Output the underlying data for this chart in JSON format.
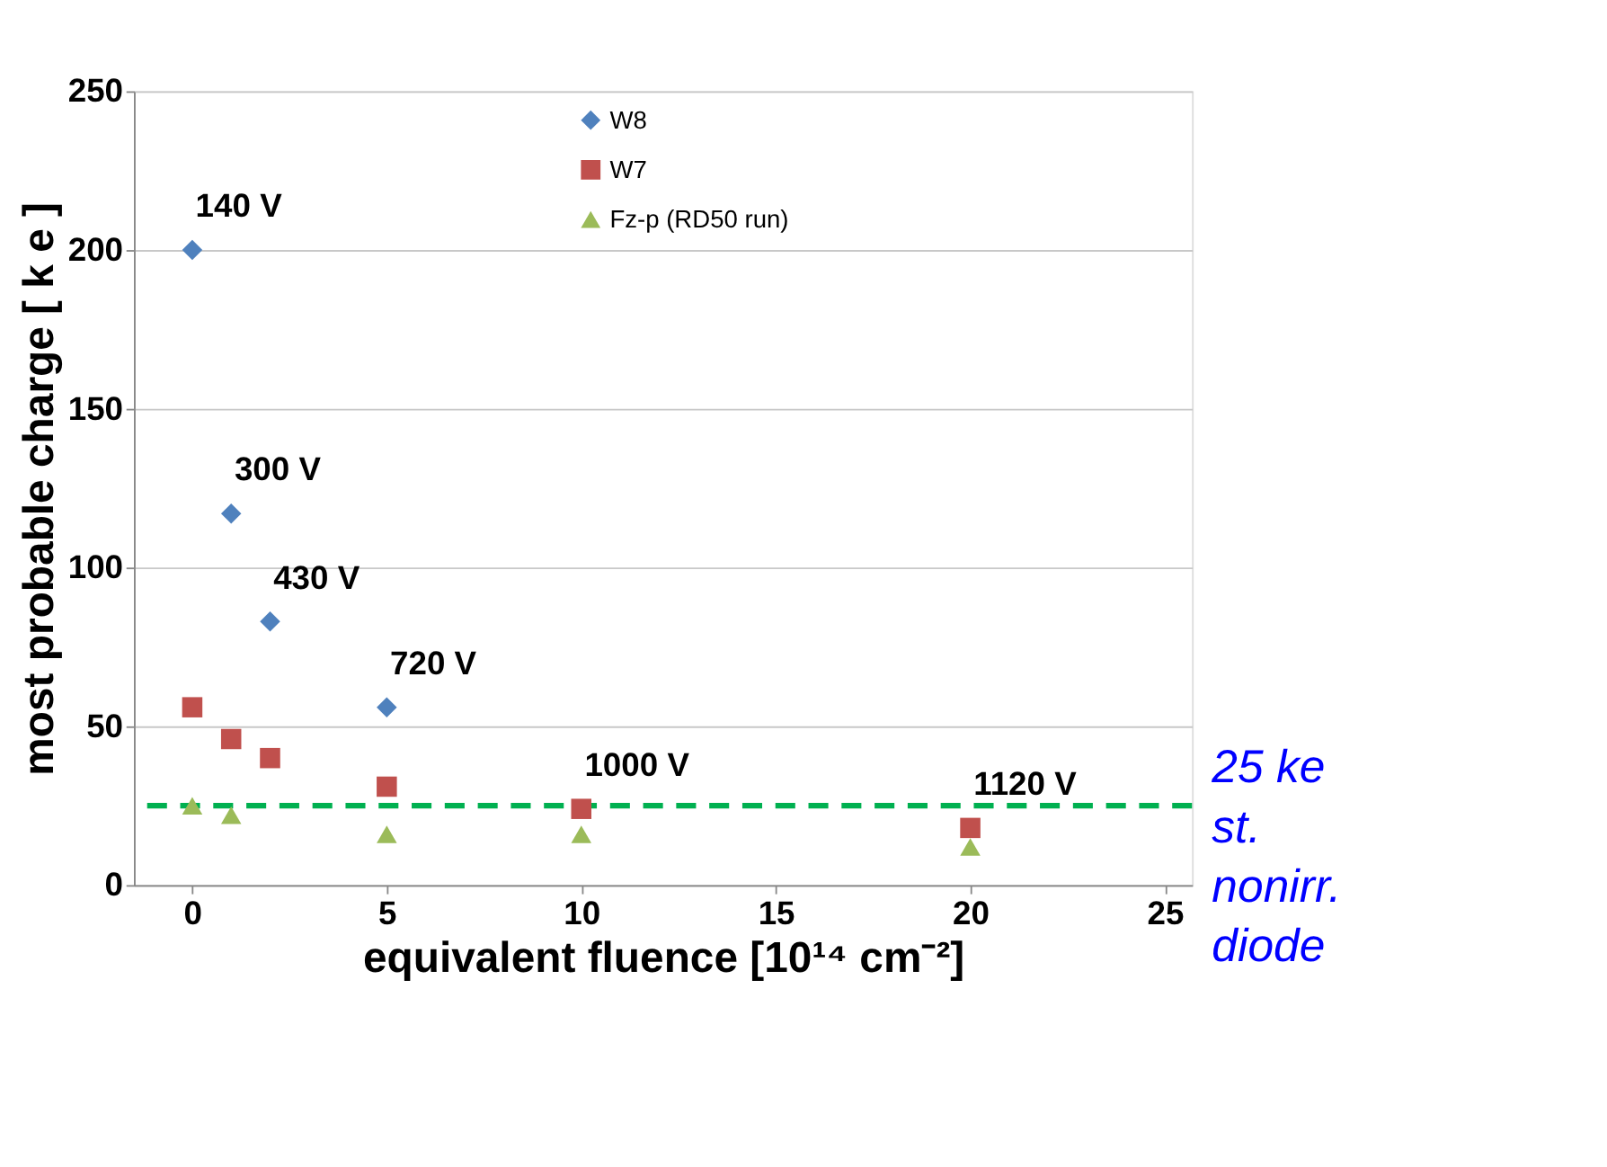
{
  "chart_data": {
    "type": "scatter",
    "xlabel": "equivalent fluence [10¹⁴ cm⁻²]",
    "ylabel": "most probable charge  [ k e ]",
    "xlim": [
      -1.5,
      25.7
    ],
    "ylim": [
      0,
      250
    ],
    "xticks": [
      0,
      5,
      10,
      15,
      20,
      25
    ],
    "yticks": [
      0,
      50,
      100,
      150,
      200,
      250
    ],
    "grid": "y",
    "legend": "top",
    "series": [
      {
        "name": "W8",
        "color": "#4f81bd",
        "marker": "diamond",
        "x": [
          0,
          1,
          2,
          5
        ],
        "values": [
          200,
          117,
          83,
          56
        ]
      },
      {
        "name": "W7",
        "color": "#c0504d",
        "marker": "square",
        "x": [
          0,
          1,
          2,
          5,
          10,
          20
        ],
        "values": [
          56,
          46,
          40,
          31,
          24,
          18
        ]
      },
      {
        "name": "Fz-p (RD50 run)",
        "color": "#9bbb59",
        "marker": "triangle",
        "x": [
          0,
          1,
          5,
          10,
          20
        ],
        "values": [
          25,
          22,
          16,
          16,
          12
        ]
      }
    ],
    "annotations": [
      {
        "text": "140 V",
        "x": 0,
        "y": 200
      },
      {
        "text": "300 V",
        "x": 1,
        "y": 117
      },
      {
        "text": "430 V",
        "x": 2,
        "y": 83
      },
      {
        "text": "720 V",
        "x": 5,
        "y": 56
      },
      {
        "text": "1000 V",
        "x": 10,
        "y": 24
      },
      {
        "text": "1120 V",
        "x": 20,
        "y": 18
      }
    ],
    "ref_lines": [
      {
        "axis": "y",
        "value": 25,
        "label": "25 ke st. nonirr. diode",
        "color": "#00b050",
        "line_style": "dashed"
      }
    ]
  }
}
